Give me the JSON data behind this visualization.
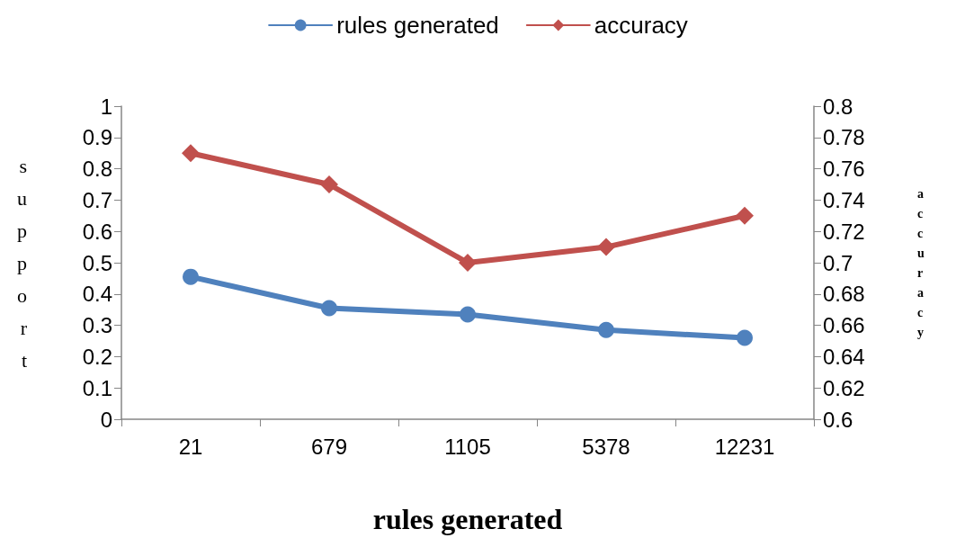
{
  "chart_data": {
    "type": "line",
    "xlabel": "rules generated",
    "ylabel": "support",
    "y2label": "accuracy",
    "categories": [
      "21",
      "679",
      "1105",
      "5378",
      "12231"
    ],
    "series": [
      {
        "name": "rules generated",
        "color": "#4f81bd",
        "marker": "circle",
        "values": [
          0.455,
          0.355,
          0.335,
          0.285,
          0.26
        ]
      },
      {
        "name": "accuracy",
        "color": "#c0504d",
        "marker": "diamond",
        "axis": "y2",
        "values": [
          0.77,
          0.75,
          0.7,
          0.71,
          0.73
        ]
      }
    ],
    "ylim": [
      0,
      1
    ],
    "yticks": [
      0,
      0.1,
      0.2,
      0.3,
      0.4,
      0.5,
      0.6,
      0.7,
      0.8,
      0.9,
      1
    ],
    "y2lim": [
      0.6,
      0.8
    ],
    "y2ticks": [
      0.6,
      0.62,
      0.64,
      0.66,
      0.68,
      0.7,
      0.72,
      0.74,
      0.76,
      0.78,
      0.8
    ],
    "grid": false,
    "legend": "top"
  }
}
